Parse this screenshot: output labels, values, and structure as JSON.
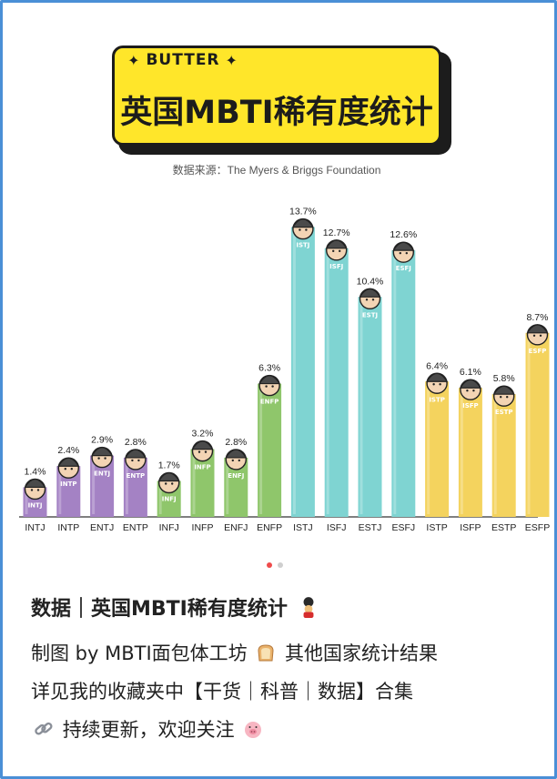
{
  "header": {
    "brand": "BUTTER",
    "brand_star": "✦",
    "title": "英国MBTI稀有度统计",
    "source": "数据来源：The Myers & Briggs Foundation"
  },
  "chart_data": {
    "type": "bar",
    "title": "英国MBTI稀有度统计",
    "categories": [
      "INTJ",
      "INTP",
      "ENTJ",
      "ENTP",
      "INFJ",
      "INFP",
      "ENFJ",
      "ENFP",
      "ISTJ",
      "ISFJ",
      "ESTJ",
      "ESFJ",
      "ISTP",
      "ISFP",
      "ESTP",
      "ESFP"
    ],
    "values": [
      1.4,
      2.4,
      2.9,
      2.8,
      1.7,
      3.2,
      2.8,
      6.3,
      13.7,
      12.7,
      10.4,
      12.6,
      6.4,
      6.1,
      5.8,
      8.7
    ],
    "value_labels": [
      "1.4%",
      "2.4%",
      "2.9%",
      "2.8%",
      "1.7%",
      "3.2%",
      "2.8%",
      "6.3%",
      "13.7%",
      "12.7%",
      "10.4%",
      "12.6%",
      "6.4%",
      "6.1%",
      "5.8%",
      "8.7%"
    ],
    "ylim": [
      0,
      14.5
    ],
    "group_colors": [
      "#a482c4",
      "#a482c4",
      "#a482c4",
      "#a482c4",
      "#8fc66b",
      "#8fc66b",
      "#8fc66b",
      "#8fc66b",
      "#7fd4d2",
      "#7fd4d2",
      "#7fd4d2",
      "#7fd4d2",
      "#f4d35e",
      "#f4d35e",
      "#f4d35e",
      "#f4d35e"
    ],
    "grid": false,
    "legend": "none"
  },
  "carousel": {
    "count": 2,
    "active": 0
  },
  "post": {
    "title": "数据｜英国MBTI稀有度统计",
    "title_icon": "guard-emoji-icon",
    "line1_a": "制图 by MBTI面包体工坊",
    "line1_icon": "bread-emoji-icon",
    "line1_b": "其他国家统计结果",
    "line2": "详见我的收藏夹中【干货｜科普｜数据】合集",
    "line3_icon": "link-emoji-icon",
    "line3": "持续更新，欢迎关注",
    "line3_end_icon": "pig-emoji-icon"
  },
  "colors": {
    "frame": "#4a8fd6",
    "banner": "#ffe62a",
    "nt": "#a482c4",
    "nf": "#8fc66b",
    "sj": "#7fd4d2",
    "sp": "#f4d35e"
  }
}
